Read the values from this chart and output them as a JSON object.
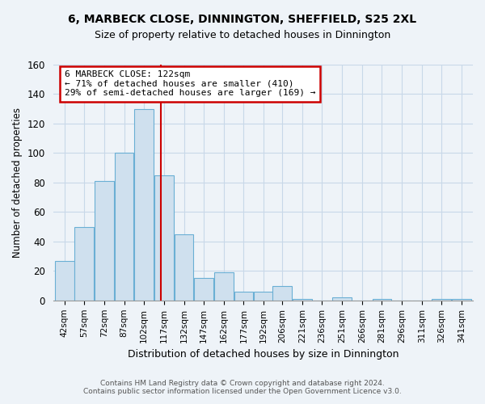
{
  "title": "6, MARBECK CLOSE, DINNINGTON, SHEFFIELD, S25 2XL",
  "subtitle": "Size of property relative to detached houses in Dinnington",
  "xlabel": "Distribution of detached houses by size in Dinnington",
  "ylabel": "Number of detached properties",
  "bin_labels": [
    "42sqm",
    "57sqm",
    "72sqm",
    "87sqm",
    "102sqm",
    "117sqm",
    "132sqm",
    "147sqm",
    "162sqm",
    "177sqm",
    "192sqm",
    "206sqm",
    "221sqm",
    "236sqm",
    "251sqm",
    "266sqm",
    "281sqm",
    "296sqm",
    "311sqm",
    "326sqm",
    "341sqm"
  ],
  "bin_left_edges": [
    42,
    57,
    72,
    87,
    102,
    117,
    132,
    147,
    162,
    177,
    192,
    206,
    221,
    236,
    251,
    266,
    281,
    296,
    311,
    326,
    341
  ],
  "bin_width": 15,
  "bar_heights": [
    27,
    50,
    81,
    100,
    130,
    85,
    45,
    15,
    19,
    6,
    6,
    10,
    1,
    0,
    2,
    0,
    1,
    0,
    0,
    1,
    1
  ],
  "bar_color": "#cfe0ee",
  "bar_edge_color": "#6aafd4",
  "property_line_x": 122,
  "property_line_color": "#cc0000",
  "annotation_text": "6 MARBECK CLOSE: 122sqm\n← 71% of detached houses are smaller (410)\n29% of semi-detached houses are larger (169) →",
  "annotation_box_color": "#ffffff",
  "annotation_box_edge_color": "#cc0000",
  "ylim": [
    0,
    160
  ],
  "yticks": [
    0,
    20,
    40,
    60,
    80,
    100,
    120,
    140,
    160
  ],
  "footer_line1": "Contains HM Land Registry data © Crown copyright and database right 2024.",
  "footer_line2": "Contains public sector information licensed under the Open Government Licence v3.0.",
  "background_color": "#eef3f8",
  "plot_background_color": "#eef3f8",
  "grid_color": "#c8d8e8",
  "title_fontsize": 10,
  "subtitle_fontsize": 9
}
